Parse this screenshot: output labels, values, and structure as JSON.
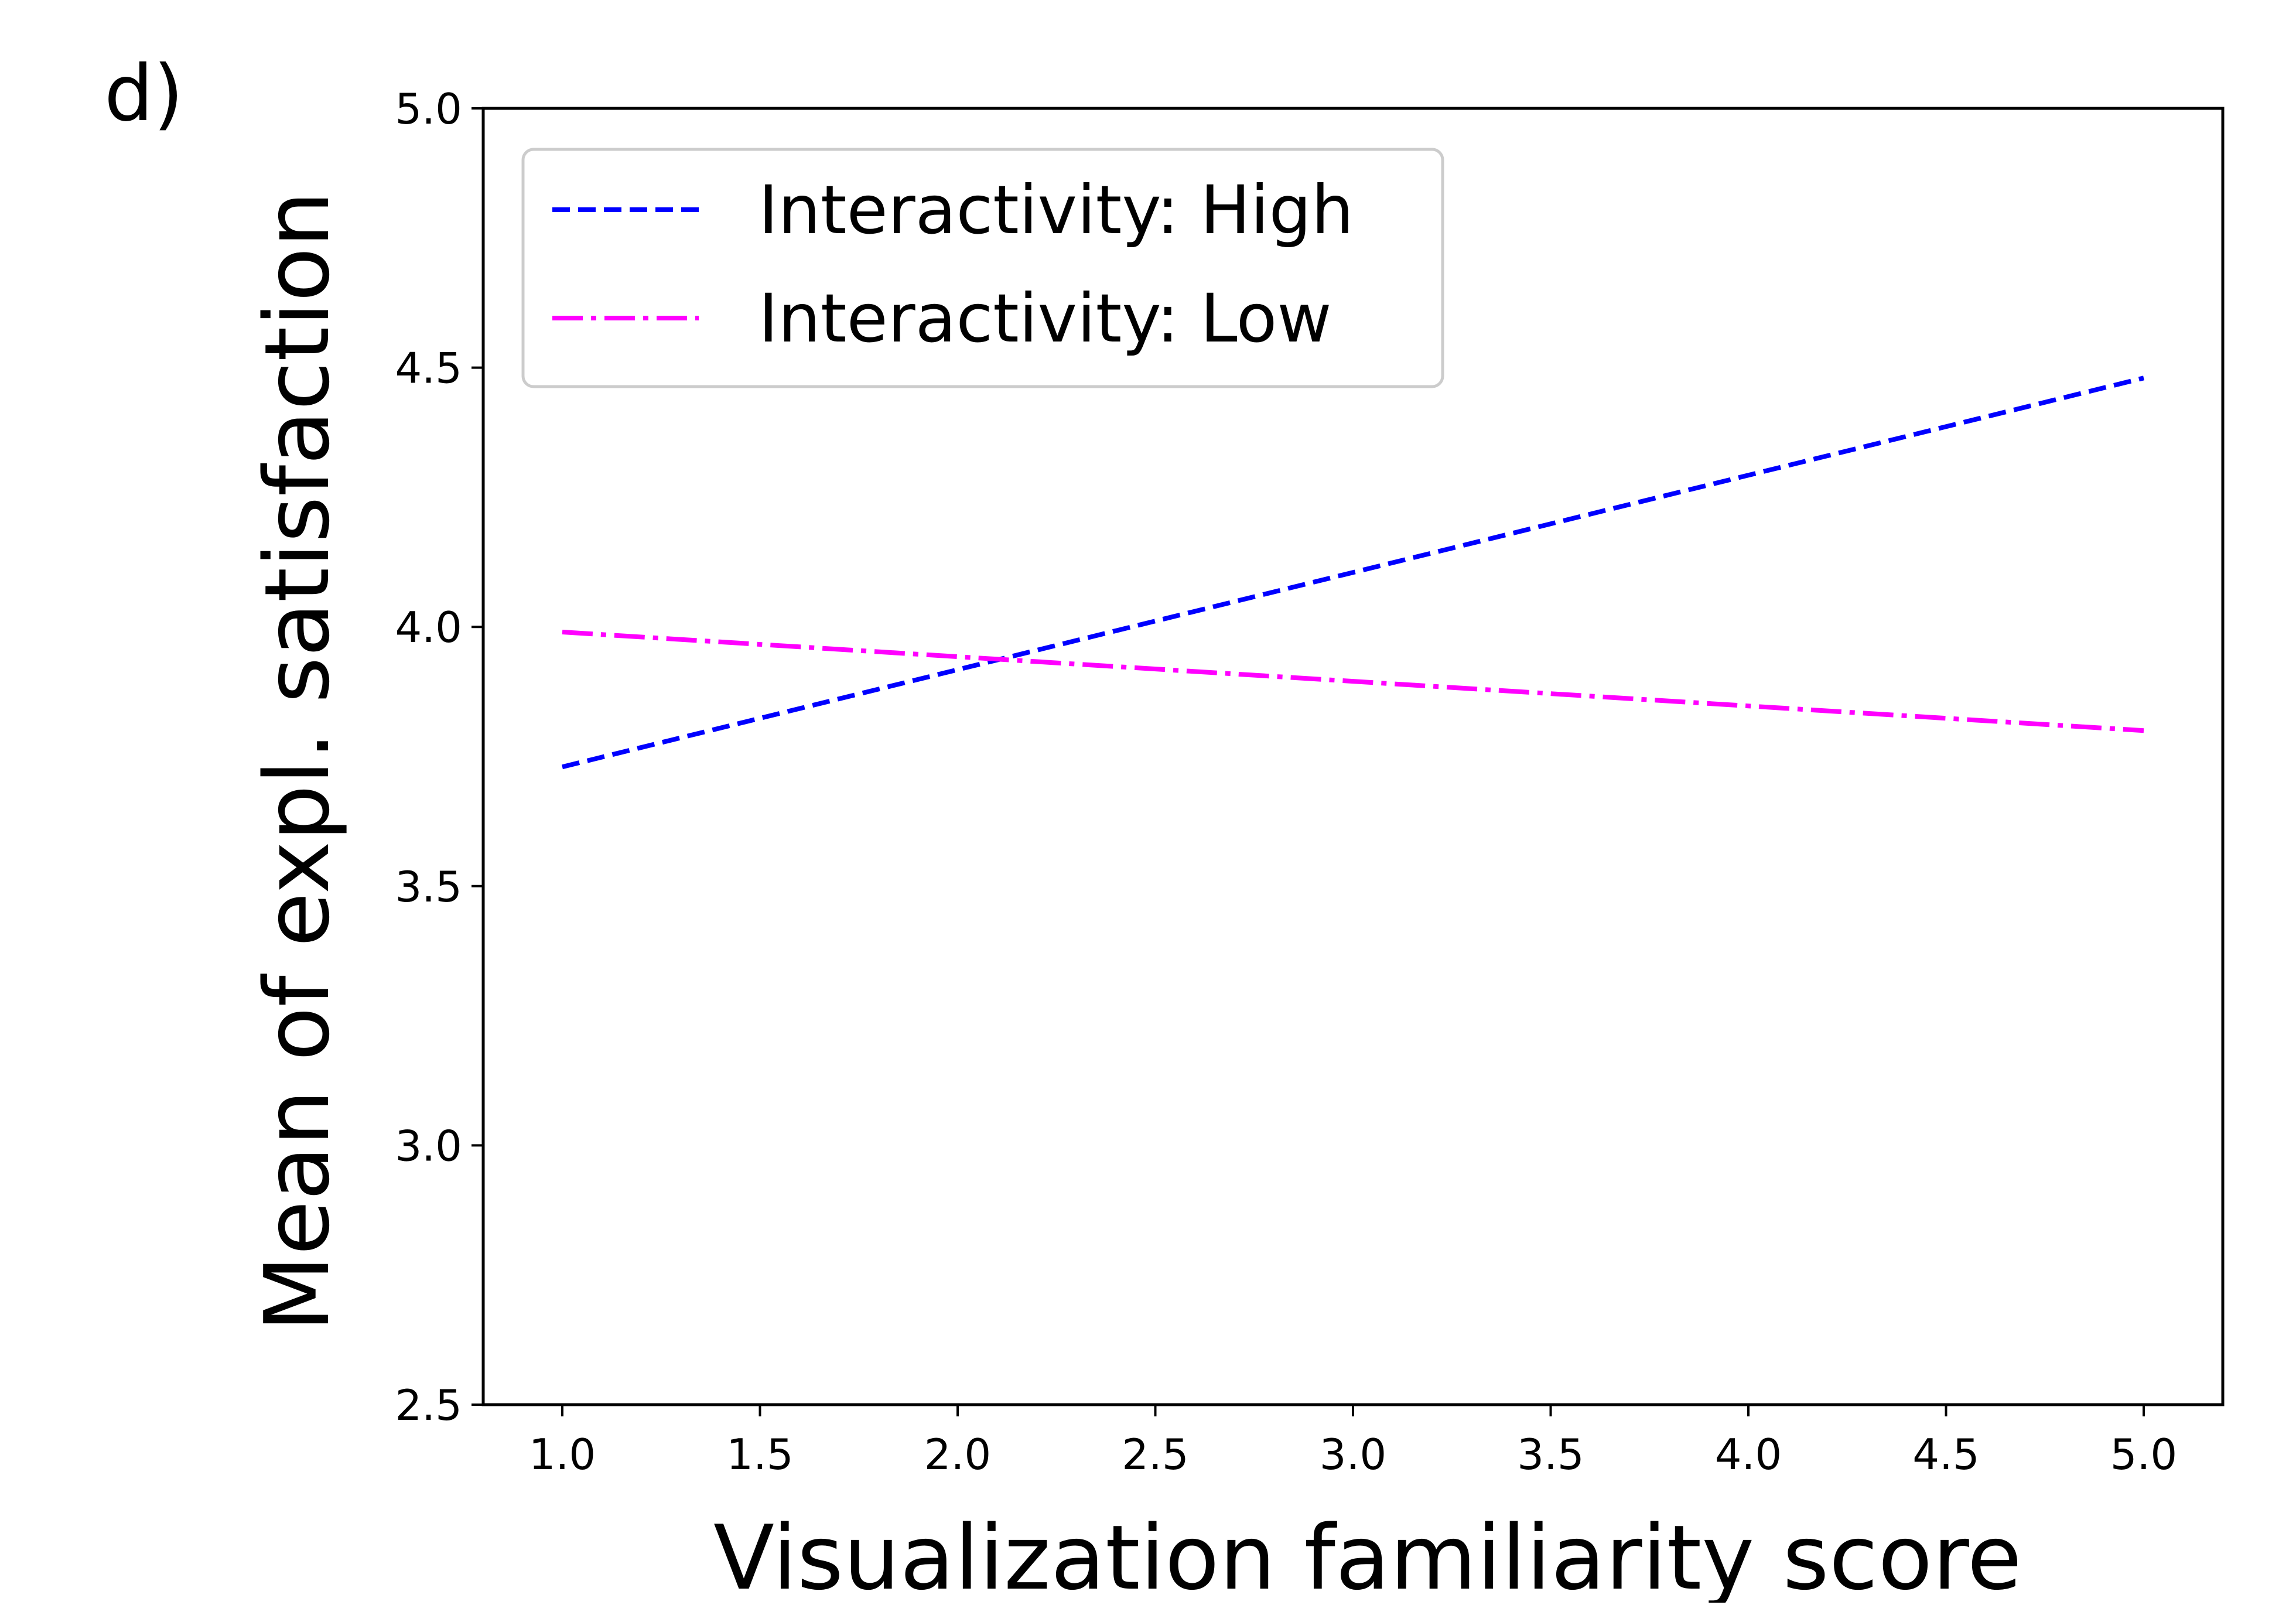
{
  "panel_label": "d)",
  "chart_data": {
    "type": "line",
    "title": "",
    "xlabel": "Visualization familiarity score",
    "ylabel": "Mean of expl. satisfaction",
    "xlim": [
      0.8,
      5.2
    ],
    "ylim": [
      2.5,
      5.0
    ],
    "xticks": [
      1.0,
      1.5,
      2.0,
      2.5,
      3.0,
      3.5,
      4.0,
      4.5,
      5.0
    ],
    "xtick_labels": [
      "1.0",
      "1.5",
      "2.0",
      "2.5",
      "3.0",
      "3.5",
      "4.0",
      "4.5",
      "5.0"
    ],
    "yticks": [
      2.5,
      3.0,
      3.5,
      4.0,
      4.5,
      5.0
    ],
    "ytick_labels": [
      "2.5",
      "3.0",
      "3.5",
      "4.0",
      "4.5",
      "5.0"
    ],
    "grid": false,
    "legend_position": "upper-left",
    "series": [
      {
        "name": "Interactivity: High",
        "x": [
          1.0,
          5.0
        ],
        "values": [
          3.73,
          4.48
        ],
        "color": "#0000ff",
        "linestyle": "dashed"
      },
      {
        "name": "Interactivity: Low",
        "x": [
          1.0,
          5.0
        ],
        "values": [
          3.99,
          3.8
        ],
        "color": "#ff00ff",
        "linestyle": "dashdot"
      }
    ]
  }
}
